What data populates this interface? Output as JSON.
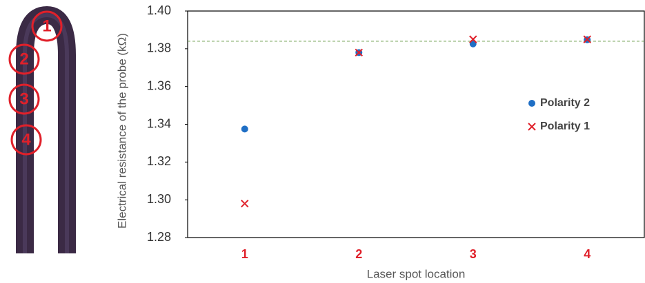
{
  "probe_labels": [
    "1",
    "2",
    "3",
    "4"
  ],
  "chart_data": {
    "type": "scatter",
    "x_label": "Laser spot location",
    "y_label": "Electrical resistance of the probe (kΩ)",
    "categories": [
      "1",
      "2",
      "3",
      "4"
    ],
    "series": [
      {
        "name": "Polarity 2",
        "color": "#1f6fc5",
        "marker": "circle",
        "values": [
          1.3375,
          1.378,
          1.3826,
          1.3848
        ]
      },
      {
        "name": "Polarity 1",
        "color": "#e0202a",
        "marker": "x",
        "values": [
          1.298,
          1.378,
          1.385,
          1.385
        ]
      }
    ],
    "reference_line": 1.384,
    "reference_color": "#6a9a4a",
    "ylim": [
      1.28,
      1.4
    ],
    "yticks": [
      1.28,
      {
        "value": 1.3,
        "label": "1.30"
      },
      1.32,
      1.34,
      1.36,
      1.38,
      {
        "value": 1.4,
        "label": "1.40"
      }
    ],
    "category_color": "#e0202a",
    "legend": "right"
  }
}
